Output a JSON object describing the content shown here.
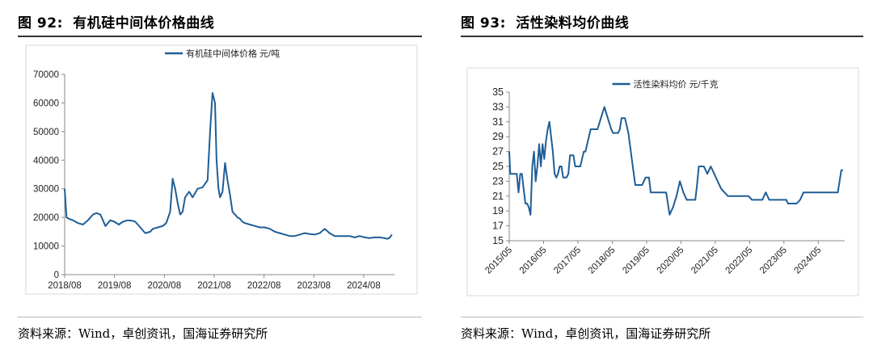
{
  "figures": [
    {
      "label": "图 92:",
      "title": "有机硅中间体价格曲线",
      "source": "资料来源：Wind，卓创资讯，国海证券研究所"
    },
    {
      "label": "图 93:",
      "title": "活性染料均价曲线",
      "source": "资料来源：Wind，卓创资讯，国海证券研究所"
    }
  ],
  "colors": {
    "series": "#1f5e97",
    "axis": "#888888",
    "rule": "#333333"
  },
  "chart_data": [
    {
      "type": "line",
      "series": [
        {
          "name": "有机硅中间体价格  元/吨",
          "x": [
            2018.583,
            2018.62,
            2018.67,
            2018.75,
            2018.85,
            2018.95,
            2019.05,
            2019.15,
            2019.22,
            2019.3,
            2019.4,
            2019.5,
            2019.58,
            2019.67,
            2019.75,
            2019.85,
            2019.95,
            2020.0,
            2020.1,
            2020.2,
            2020.3,
            2020.35,
            2020.45,
            2020.55,
            2020.62,
            2020.7,
            2020.75,
            2020.8,
            2020.85,
            2020.9,
            2020.95,
            2021.0,
            2021.08,
            2021.15,
            2021.25,
            2021.35,
            2021.45,
            2021.5,
            2021.55,
            2021.6,
            2021.63,
            2021.67,
            2021.7,
            2021.75,
            2021.8,
            2021.85,
            2021.9,
            2021.95,
            2022.0,
            2022.05,
            2022.1,
            2022.15,
            2022.2,
            2022.3,
            2022.4,
            2022.5,
            2022.6,
            2022.7,
            2022.8,
            2022.9,
            2023.0,
            2023.1,
            2023.2,
            2023.3,
            2023.4,
            2023.5,
            2023.6,
            2023.7,
            2023.8,
            2023.9,
            2024.0,
            2024.1,
            2024.2,
            2024.3,
            2024.4,
            2024.5,
            2024.6,
            2024.7,
            2024.8,
            2024.9,
            2025.0,
            2025.05,
            2025.1,
            2025.15
          ],
          "y": [
            30000,
            20000,
            19500,
            19000,
            18000,
            17500,
            19000,
            21000,
            21500,
            21000,
            17000,
            19000,
            18500,
            17500,
            18500,
            19000,
            18800,
            18500,
            16500,
            14500,
            15000,
            16000,
            16500,
            17000,
            18000,
            22000,
            33500,
            30000,
            25000,
            21000,
            22000,
            27000,
            29000,
            27000,
            30000,
            30500,
            33000,
            50000,
            63500,
            60000,
            40000,
            30000,
            27000,
            29000,
            39000,
            33000,
            28000,
            22000,
            21000,
            20000,
            19500,
            18500,
            18000,
            17500,
            17000,
            16500,
            16500,
            16000,
            15000,
            14500,
            14000,
            13500,
            13500,
            14000,
            14500,
            14200,
            14000,
            14500,
            16000,
            14500,
            13500,
            13500,
            13500,
            13500,
            13000,
            13500,
            13000,
            12800,
            13000,
            13000,
            12800,
            12500,
            12800,
            14000
          ]
        }
      ],
      "xlabel": "",
      "ylabel": "",
      "xlim": [
        2018.583,
        2025.2
      ],
      "ylim": [
        0,
        70000
      ],
      "yticks": [
        0,
        10000,
        20000,
        30000,
        40000,
        50000,
        60000,
        70000
      ],
      "ytick_labels": [
        "0",
        "10000",
        "20000",
        "30000",
        "40000",
        "50000",
        "60000",
        "70000"
      ],
      "xticks": [
        2018.583,
        2019.583,
        2020.583,
        2021.583,
        2022.583,
        2023.583,
        2024.583
      ],
      "xtick_labels": [
        "2018/08",
        "2019/08",
        "2020/08",
        "2021/08",
        "2022/08",
        "2023/08",
        "2024/08"
      ],
      "legend_position": "top-center",
      "grid": false
    },
    {
      "type": "line",
      "series": [
        {
          "name": "活性染料均价  元/千克",
          "x": [
            2015.33,
            2015.36,
            2015.4,
            2015.45,
            2015.5,
            2015.55,
            2015.6,
            2015.65,
            2015.7,
            2015.75,
            2015.8,
            2015.85,
            2015.9,
            2015.95,
            2016.0,
            2016.05,
            2016.1,
            2016.15,
            2016.2,
            2016.25,
            2016.3,
            2016.35,
            2016.4,
            2016.45,
            2016.5,
            2016.55,
            2016.6,
            2016.65,
            2016.7,
            2016.75,
            2016.8,
            2016.85,
            2016.9,
            2016.95,
            2017.0,
            2017.05,
            2017.1,
            2017.2,
            2017.25,
            2017.3,
            2017.4,
            2017.5,
            2017.55,
            2017.6,
            2017.7,
            2017.8,
            2017.9,
            2018.0,
            2018.1,
            2018.2,
            2018.3,
            2018.35,
            2018.4,
            2018.45,
            2018.5,
            2018.55,
            2018.6,
            2018.7,
            2018.8,
            2018.9,
            2019.0,
            2019.1,
            2019.2,
            2019.3,
            2019.4,
            2019.45,
            2019.5,
            2019.6,
            2019.7,
            2019.8,
            2019.9,
            2020.0,
            2020.1,
            2020.2,
            2020.3,
            2020.4,
            2020.5,
            2020.6,
            2020.65,
            2020.7,
            2020.75,
            2020.8,
            2020.85,
            2020.9,
            2021.0,
            2021.1,
            2021.2,
            2021.3,
            2021.4,
            2021.5,
            2021.6,
            2021.7,
            2021.8,
            2021.9,
            2022.0,
            2022.1,
            2022.2,
            2022.3,
            2022.4,
            2022.5,
            2022.6,
            2022.7,
            2022.8,
            2022.9,
            2023.0,
            2023.1,
            2023.2,
            2023.3,
            2023.4,
            2023.45,
            2023.5,
            2023.6,
            2023.7,
            2023.8,
            2023.9,
            2024.0,
            2024.1,
            2024.2,
            2024.3,
            2024.4,
            2024.5,
            2024.6,
            2024.7,
            2024.8,
            2024.9,
            2025.0,
            2025.05
          ],
          "y": [
            27,
            24,
            24,
            24,
            24,
            24,
            21.5,
            24,
            24,
            22,
            20,
            20,
            19.5,
            18.5,
            25,
            27,
            23,
            25,
            28,
            25,
            28,
            26,
            28.5,
            30,
            31,
            29,
            27,
            24,
            23.5,
            24,
            25,
            25,
            23.5,
            23.5,
            23.5,
            24,
            26.5,
            26.5,
            25,
            25,
            25,
            27,
            27,
            28,
            30,
            30,
            30,
            31.5,
            33,
            31.5,
            30,
            29.5,
            29.5,
            29.5,
            29.5,
            30,
            31.5,
            31.5,
            29.5,
            26,
            22.5,
            22.5,
            22.5,
            23.5,
            23.5,
            21.5,
            21.5,
            21.5,
            21.5,
            21.5,
            21.5,
            18.5,
            19.5,
            21,
            23,
            21.5,
            20.5,
            20.5,
            20.5,
            20.5,
            20.5,
            22.5,
            25,
            25,
            25,
            24,
            25,
            24,
            23,
            22,
            21.5,
            21,
            21,
            21,
            21,
            21,
            21,
            21,
            20.5,
            20.5,
            20.5,
            20.5,
            21.5,
            20.5,
            20.5,
            20.5,
            20.5,
            20.5,
            20.5,
            20,
            20,
            20,
            20,
            20.5,
            21.5,
            21.5,
            21.5,
            21.5,
            21.5,
            21.5,
            21.5,
            21.5,
            21.5,
            21.5,
            21.5,
            24.5,
            24.5
          ]
        }
      ],
      "xlabel": "",
      "ylabel": "",
      "xlim": [
        2015.33,
        2025.1
      ],
      "ylim": [
        15,
        35
      ],
      "yticks": [
        15,
        17,
        19,
        21,
        23,
        25,
        27,
        29,
        31,
        33,
        35
      ],
      "ytick_labels": [
        "15",
        "17",
        "19",
        "21",
        "23",
        "25",
        "27",
        "29",
        "31",
        "33",
        "35"
      ],
      "xticks": [
        2015.33,
        2016.33,
        2017.33,
        2018.33,
        2019.33,
        2020.33,
        2021.33,
        2022.33,
        2023.33,
        2024.33
      ],
      "xtick_labels": [
        "2015/05",
        "2016/05",
        "2017/05",
        "2018/05",
        "2019/05",
        "2020/05",
        "2021/05",
        "2022/05",
        "2023/05",
        "2024/05"
      ],
      "legend_position": "top-center",
      "grid": false
    }
  ]
}
